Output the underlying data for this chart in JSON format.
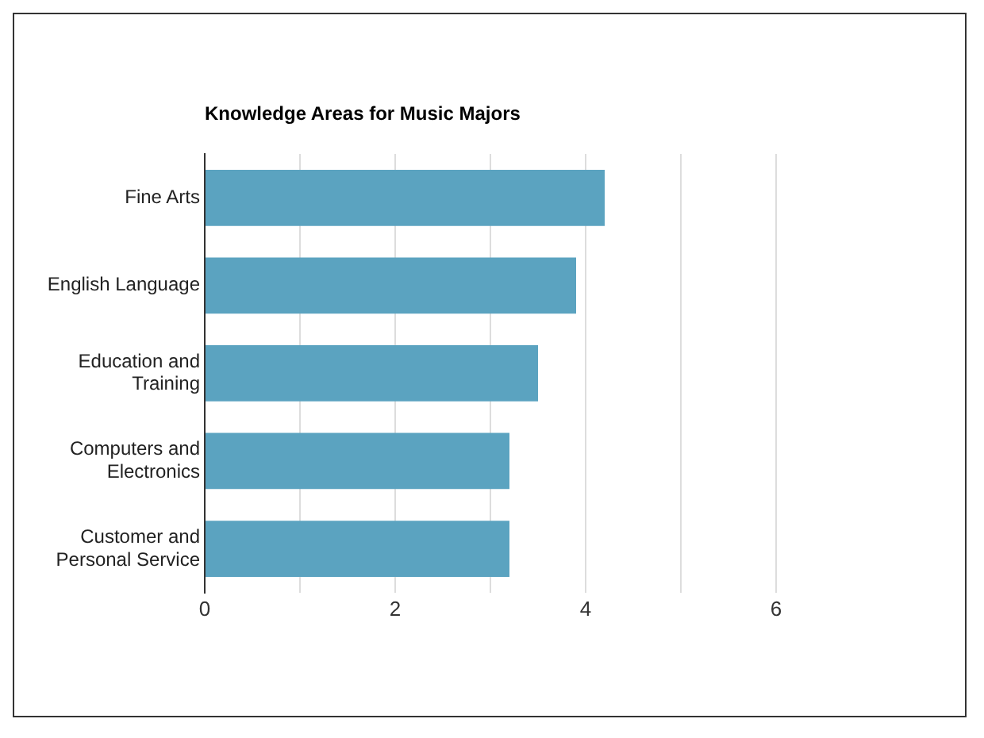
{
  "chart_data": {
    "type": "bar",
    "orientation": "horizontal",
    "title": "Knowledge Areas for Music Majors",
    "categories": [
      "Fine Arts",
      "English Language",
      "Education and Training",
      "Computers and Electronics",
      "Customer and Personal Service"
    ],
    "values": [
      4.2,
      3.9,
      3.5,
      3.2,
      3.2
    ],
    "color": "#5ba3c0",
    "xlim": [
      0,
      6
    ],
    "xticks": [
      0,
      {
        "value": 1,
        "label": null
      },
      2,
      {
        "value": 3,
        "label": null
      },
      4,
      {
        "value": 5,
        "label": null
      },
      6
    ],
    "grid": "x",
    "legend": false
  }
}
